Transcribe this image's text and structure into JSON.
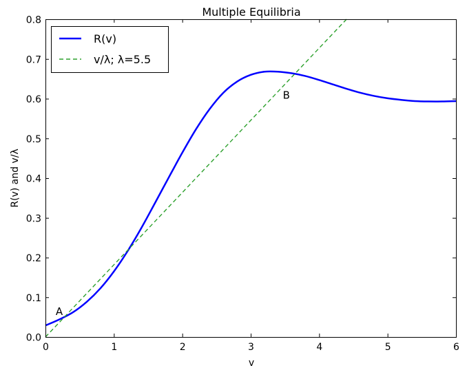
{
  "chart_data": {
    "type": "line",
    "title": "Multiple Equilibria",
    "xlabel": "v",
    "ylabel": "R(v) and v/λ",
    "xlim": [
      0,
      6
    ],
    "ylim": [
      0,
      0.8
    ],
    "xticks": [
      "0",
      "1",
      "2",
      "3",
      "4",
      "5",
      "6"
    ],
    "yticks": [
      "0.0",
      "0.1",
      "0.2",
      "0.3",
      "0.4",
      "0.5",
      "0.6",
      "0.7",
      "0.8"
    ],
    "grid": false,
    "legend_position": "top-left",
    "series": [
      {
        "name": "R(v)",
        "style": "solid",
        "color": "#0000ff",
        "x": [
          0,
          0.2,
          0.4,
          0.6,
          0.8,
          1.0,
          1.2,
          1.4,
          1.6,
          1.8,
          2.0,
          2.2,
          2.4,
          2.6,
          2.8,
          3.0,
          3.2,
          3.4,
          3.6,
          3.8,
          4.0,
          4.2,
          4.4,
          4.6,
          4.8,
          5.0,
          5.2,
          5.4,
          5.6,
          5.8,
          6.0
        ],
        "y": [
          0.029,
          0.044,
          0.062,
          0.088,
          0.122,
          0.165,
          0.216,
          0.274,
          0.337,
          0.401,
          0.464,
          0.523,
          0.574,
          0.615,
          0.643,
          0.66,
          0.668,
          0.668,
          0.664,
          0.657,
          0.647,
          0.636,
          0.625,
          0.615,
          0.607,
          0.601,
          0.597,
          0.594,
          0.593,
          0.593,
          0.594
        ]
      },
      {
        "name": "v/λ; λ=5.5",
        "style": "dashed",
        "color": "#2ca02c",
        "x": [
          0,
          4.4
        ],
        "y": [
          0,
          0.8
        ]
      }
    ],
    "annotations": [
      {
        "text": "A",
        "x": 0.15,
        "y": 0.055
      },
      {
        "text": "B",
        "x": 3.47,
        "y": 0.6
      }
    ]
  }
}
